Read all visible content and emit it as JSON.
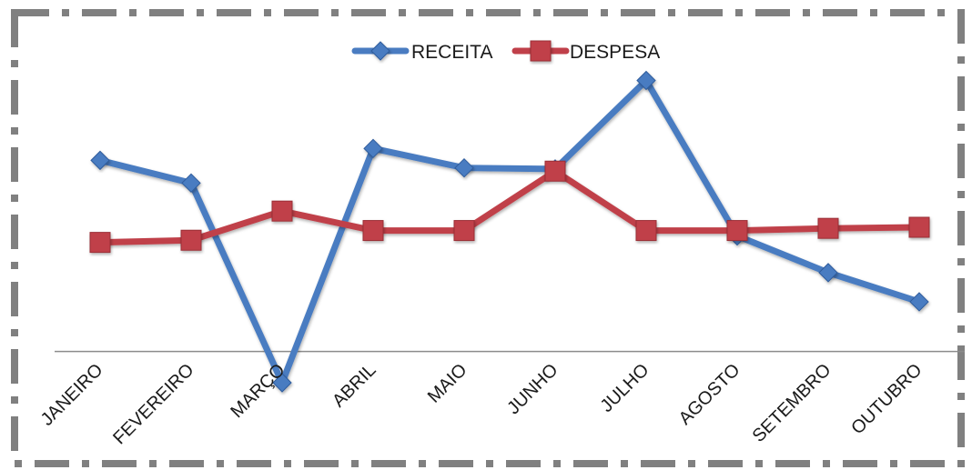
{
  "chart_data": {
    "type": "line",
    "title": "",
    "xlabel": "",
    "ylabel": "",
    "categories": [
      "JANEIRO",
      "FEVEREIRO",
      "MARÇO",
      "ABRIL",
      "MAIO",
      "JUNHO",
      "JULHO",
      "AGOSTO",
      "SETEMBRO",
      "OUTUBRO"
    ],
    "series": [
      {
        "name": "RECEITA",
        "color": "#4a7cc1",
        "marker": "diamond",
        "values": [
          177,
          156,
          -29,
          188,
          170,
          169,
          251,
          107,
          73,
          46
        ]
      },
      {
        "name": "DESPESA",
        "color": "#c0404a",
        "marker": "square",
        "values": [
          101,
          103,
          130,
          112,
          112,
          167,
          112,
          112,
          114,
          115
        ]
      }
    ],
    "ylim": [
      -45,
      275
    ],
    "y_axis_visible": false,
    "grid": false,
    "legend_position": "top-center",
    "border_style": "dash-dot",
    "border_color": "#808080"
  }
}
